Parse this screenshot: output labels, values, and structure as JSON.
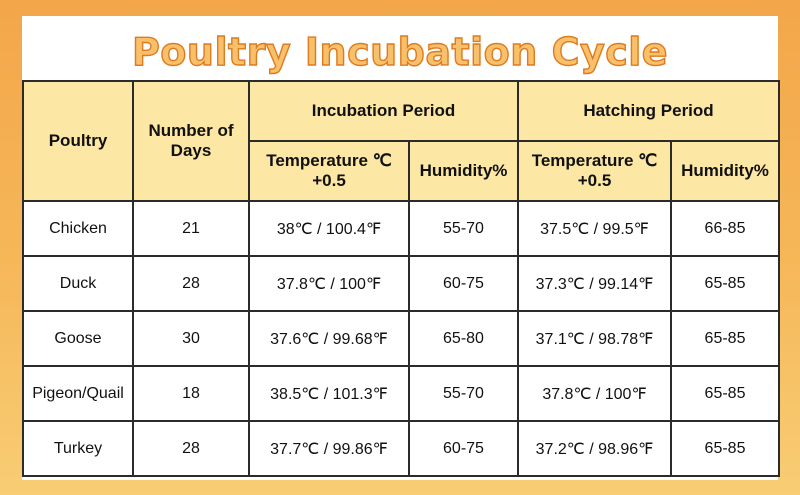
{
  "title": "Poultry Incubation Cycle",
  "header": {
    "poultry": "Poultry",
    "days": "Number of Days",
    "incubation": "Incubation Period",
    "hatching": "Hatching Period",
    "temperature": "Temperature ℃+0.5",
    "humidity": "Humidity%"
  },
  "rows": [
    {
      "poultry": "Chicken",
      "days": "21",
      "inc_temp": "38℃ / 100.4℉",
      "inc_hum": "55-70",
      "hat_temp": "37.5℃ / 99.5℉",
      "hat_hum": "66-85"
    },
    {
      "poultry": "Duck",
      "days": "28",
      "inc_temp": "37.8℃ / 100℉",
      "inc_hum": "60-75",
      "hat_temp": "37.3℃ / 99.14℉",
      "hat_hum": "65-85"
    },
    {
      "poultry": "Goose",
      "days": "30",
      "inc_temp": "37.6℃ / 99.68℉",
      "inc_hum": "65-80",
      "hat_temp": "37.1℃ / 98.78℉",
      "hat_hum": "65-85"
    },
    {
      "poultry": "Pigeon/Quail",
      "days": "18",
      "inc_temp": "38.5℃ / 101.3℉",
      "inc_hum": "55-70",
      "hat_temp": "37.8℃ / 100℉",
      "hat_hum": "65-85"
    },
    {
      "poultry": "Turkey",
      "days": "28",
      "inc_temp": "37.7℃ / 99.86℉",
      "inc_hum": "60-75",
      "hat_temp": "37.2℃ / 98.96℉",
      "hat_hum": "65-85"
    }
  ],
  "colors": {
    "background_top": "#f3a64a",
    "header_fill": "#fce7a5",
    "title_fill": "#f7c16b",
    "title_outline": "#e07a1e"
  }
}
